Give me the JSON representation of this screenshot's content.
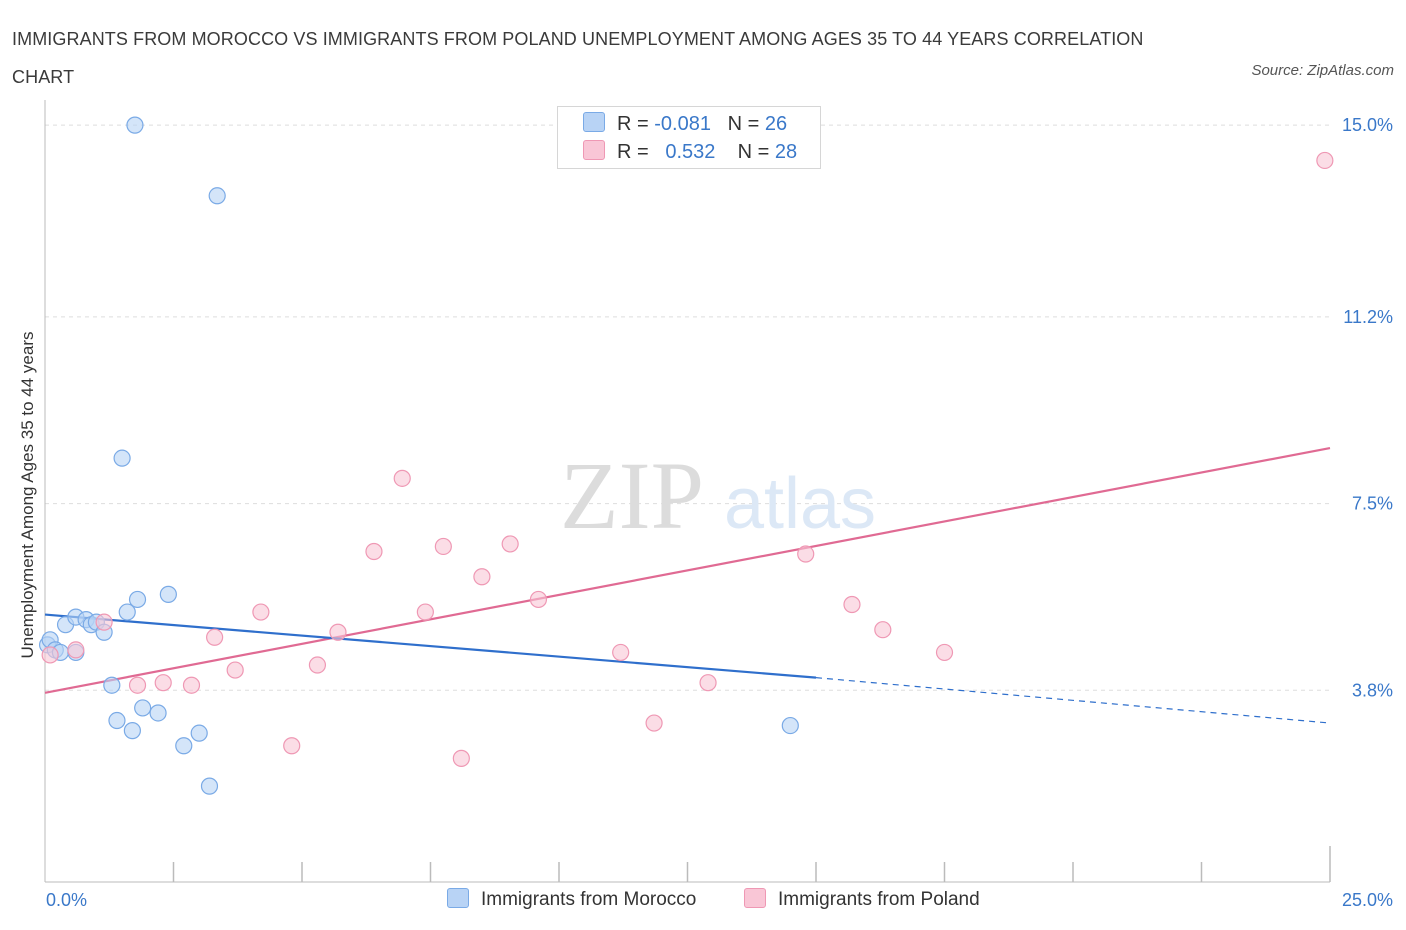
{
  "title": "IMMIGRANTS FROM MOROCCO VS IMMIGRANTS FROM POLAND UNEMPLOYMENT AMONG AGES 35 TO 44 YEARS CORRELATION CHART",
  "source": "Source: ZipAtlas.com",
  "watermark": {
    "zip": "ZIP",
    "atlas": "atlas"
  },
  "legend": {
    "r_label": "R =",
    "n_label": "N =",
    "series": [
      {
        "name": "Immigrants from Morocco",
        "r": "-0.081",
        "n": "26"
      },
      {
        "name": "Immigrants from Poland",
        "r": "0.532",
        "n": "28"
      }
    ]
  },
  "colors": {
    "morocco_fill": "#b8d3f5",
    "morocco_stroke": "#7aaae6",
    "morocco_line": "#2f6fcc",
    "poland_fill": "#f9c6d6",
    "poland_stroke": "#ef98b4",
    "poland_line": "#e06a93",
    "axis_label": "#3a78c9"
  },
  "chart_data": {
    "type": "scatter",
    "title": "IMMIGRANTS FROM MOROCCO VS IMMIGRANTS FROM POLAND UNEMPLOYMENT AMONG AGES 35 TO 44 YEARS CORRELATION CHART",
    "xlabel": "",
    "ylabel": "Unemployment Among Ages 35 to 44 years",
    "xlim": [
      0,
      25
    ],
    "ylim": [
      0,
      15.3
    ],
    "x_tick_labels": [
      "0.0%",
      "25.0%"
    ],
    "y_ticks": [
      3.8,
      7.5,
      11.2,
      15.0
    ],
    "y_tick_labels": [
      "3.8%",
      "7.5%",
      "11.2%",
      "15.0%"
    ],
    "grid": true,
    "series": [
      {
        "name": "Immigrants from Morocco",
        "points": [
          [
            0.05,
            4.7
          ],
          [
            0.1,
            4.8
          ],
          [
            0.2,
            4.6
          ],
          [
            0.4,
            5.1
          ],
          [
            0.6,
            5.25
          ],
          [
            0.8,
            5.2
          ],
          [
            0.9,
            5.1
          ],
          [
            1.0,
            5.15
          ],
          [
            1.15,
            4.95
          ],
          [
            1.3,
            3.9
          ],
          [
            1.4,
            3.2
          ],
          [
            1.5,
            8.4
          ],
          [
            1.6,
            5.35
          ],
          [
            1.9,
            3.45
          ],
          [
            1.7,
            3.0
          ],
          [
            2.2,
            3.35
          ],
          [
            1.8,
            5.6
          ],
          [
            2.4,
            5.7
          ],
          [
            2.7,
            2.7
          ],
          [
            3.0,
            2.95
          ],
          [
            3.2,
            1.9
          ],
          [
            3.35,
            13.6
          ],
          [
            1.75,
            15.0
          ],
          [
            0.3,
            4.55
          ],
          [
            0.6,
            4.55
          ],
          [
            14.5,
            3.1
          ]
        ],
        "trend": {
          "x": [
            0,
            15
          ],
          "y": [
            5.3,
            4.05
          ],
          "dashed_extension": {
            "x": [
              15,
              25
            ],
            "y": [
              4.05,
              3.15
            ]
          }
        }
      },
      {
        "name": "Immigrants from Poland",
        "points": [
          [
            0.1,
            4.5
          ],
          [
            0.6,
            4.6
          ],
          [
            1.15,
            5.15
          ],
          [
            1.8,
            3.9
          ],
          [
            2.3,
            3.95
          ],
          [
            2.85,
            3.9
          ],
          [
            3.3,
            4.85
          ],
          [
            3.7,
            4.2
          ],
          [
            4.2,
            5.35
          ],
          [
            4.8,
            2.7
          ],
          [
            5.3,
            4.3
          ],
          [
            5.7,
            4.95
          ],
          [
            6.4,
            6.55
          ],
          [
            6.95,
            8.0
          ],
          [
            7.4,
            5.35
          ],
          [
            7.75,
            6.65
          ],
          [
            8.1,
            2.45
          ],
          [
            8.5,
            6.05
          ],
          [
            9.05,
            6.7
          ],
          [
            9.6,
            5.6
          ],
          [
            11.2,
            4.55
          ],
          [
            11.85,
            3.15
          ],
          [
            12.9,
            3.95
          ],
          [
            14.8,
            6.5
          ],
          [
            15.7,
            5.5
          ],
          [
            16.3,
            5.0
          ],
          [
            17.5,
            4.55
          ],
          [
            24.9,
            14.3
          ]
        ],
        "trend": {
          "x": [
            0,
            25
          ],
          "y": [
            3.75,
            8.6
          ]
        }
      }
    ]
  }
}
